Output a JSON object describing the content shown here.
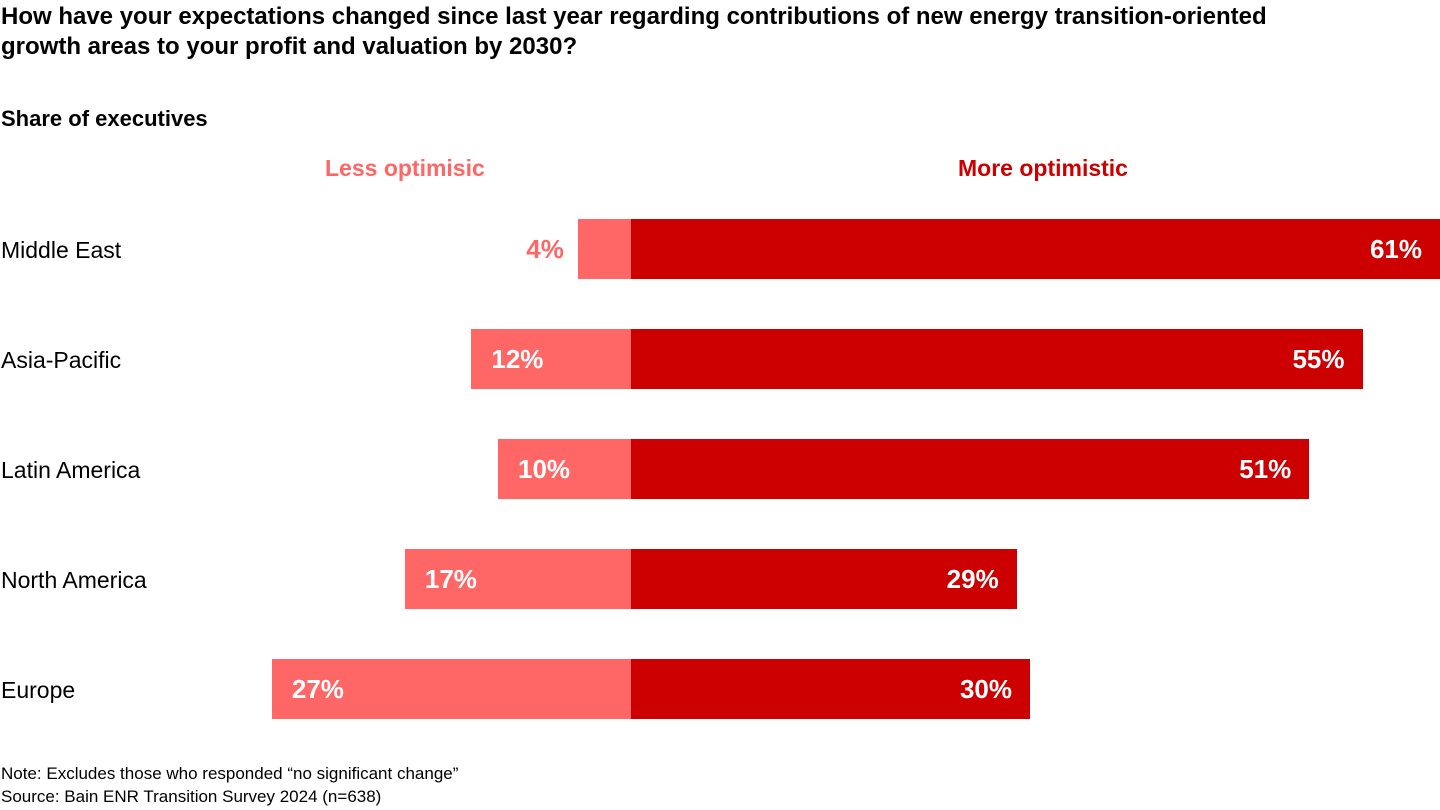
{
  "colors": {
    "less": "#FF6666",
    "more": "#CC0000"
  },
  "chart_data": {
    "type": "bar",
    "orientation": "horizontal-diverging",
    "title": "How have your expectations changed since last year regarding contributions of new energy transition-oriented growth areas to your profit and valuation by 2030?",
    "subtitle": "Share of executives",
    "categories": [
      "Middle East",
      "Asia-Pacific",
      "Latin America",
      "North America",
      "Europe"
    ],
    "series": [
      {
        "name": "Less optimisic",
        "values": [
          4,
          12,
          10,
          17,
          27
        ]
      },
      {
        "name": "More optimistic",
        "values": [
          61,
          55,
          51,
          29,
          30
        ]
      }
    ],
    "value_labels": {
      "less": [
        "4%",
        "12%",
        "10%",
        "17%",
        "27%"
      ],
      "more": [
        "61%",
        "55%",
        "51%",
        "29%",
        "30%"
      ]
    },
    "unit": "%"
  },
  "notes": {
    "note": "Note: Excludes those who responded “no significant change”",
    "source": "Source: Bain ENR Transition Survey 2024 (n=638)"
  }
}
